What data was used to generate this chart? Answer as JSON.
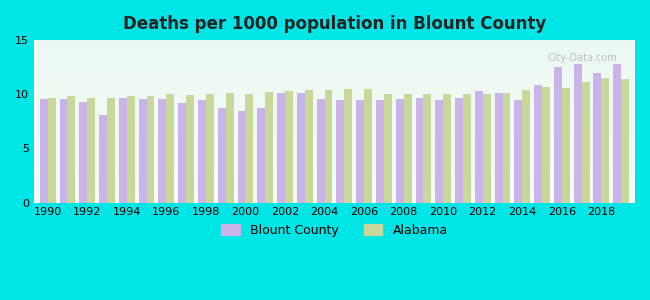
{
  "title": "Deaths per 1000 population in Blount County",
  "background_color": "#00e5e5",
  "plot_bg_top": "#e8f5f0",
  "plot_bg_bottom": "#f5fff5",
  "years": [
    1990,
    1991,
    1992,
    1993,
    1994,
    1995,
    1996,
    1997,
    1998,
    1999,
    2000,
    2001,
    2002,
    2003,
    2004,
    2005,
    2006,
    2007,
    2008,
    2009,
    2010,
    2011,
    2012,
    2013,
    2014,
    2015,
    2016,
    2017,
    2018,
    2019
  ],
  "blount_county": [
    9.6,
    9.6,
    9.3,
    8.1,
    9.7,
    9.6,
    9.6,
    9.2,
    9.5,
    8.7,
    8.5,
    8.7,
    10.1,
    10.1,
    9.6,
    9.5,
    9.5,
    9.5,
    9.6,
    9.7,
    9.5,
    9.7,
    10.3,
    10.1,
    9.5,
    10.9,
    12.5,
    12.8,
    12.0,
    12.8
  ],
  "alabama": [
    9.7,
    9.8,
    9.7,
    9.7,
    9.8,
    9.8,
    10.0,
    9.9,
    10.0,
    10.1,
    10.0,
    10.2,
    10.3,
    10.4,
    10.4,
    10.5,
    10.5,
    10.0,
    10.0,
    10.0,
    10.0,
    10.0,
    10.0,
    10.1,
    10.4,
    10.7,
    10.6,
    11.1,
    11.5,
    11.4
  ],
  "blount_color": "#c9b3e8",
  "alabama_color": "#c8d89a",
  "ylim": [
    0,
    15
  ],
  "yticks": [
    0,
    5,
    10,
    15
  ],
  "bar_width": 0.4,
  "watermark": "City-Data.com"
}
